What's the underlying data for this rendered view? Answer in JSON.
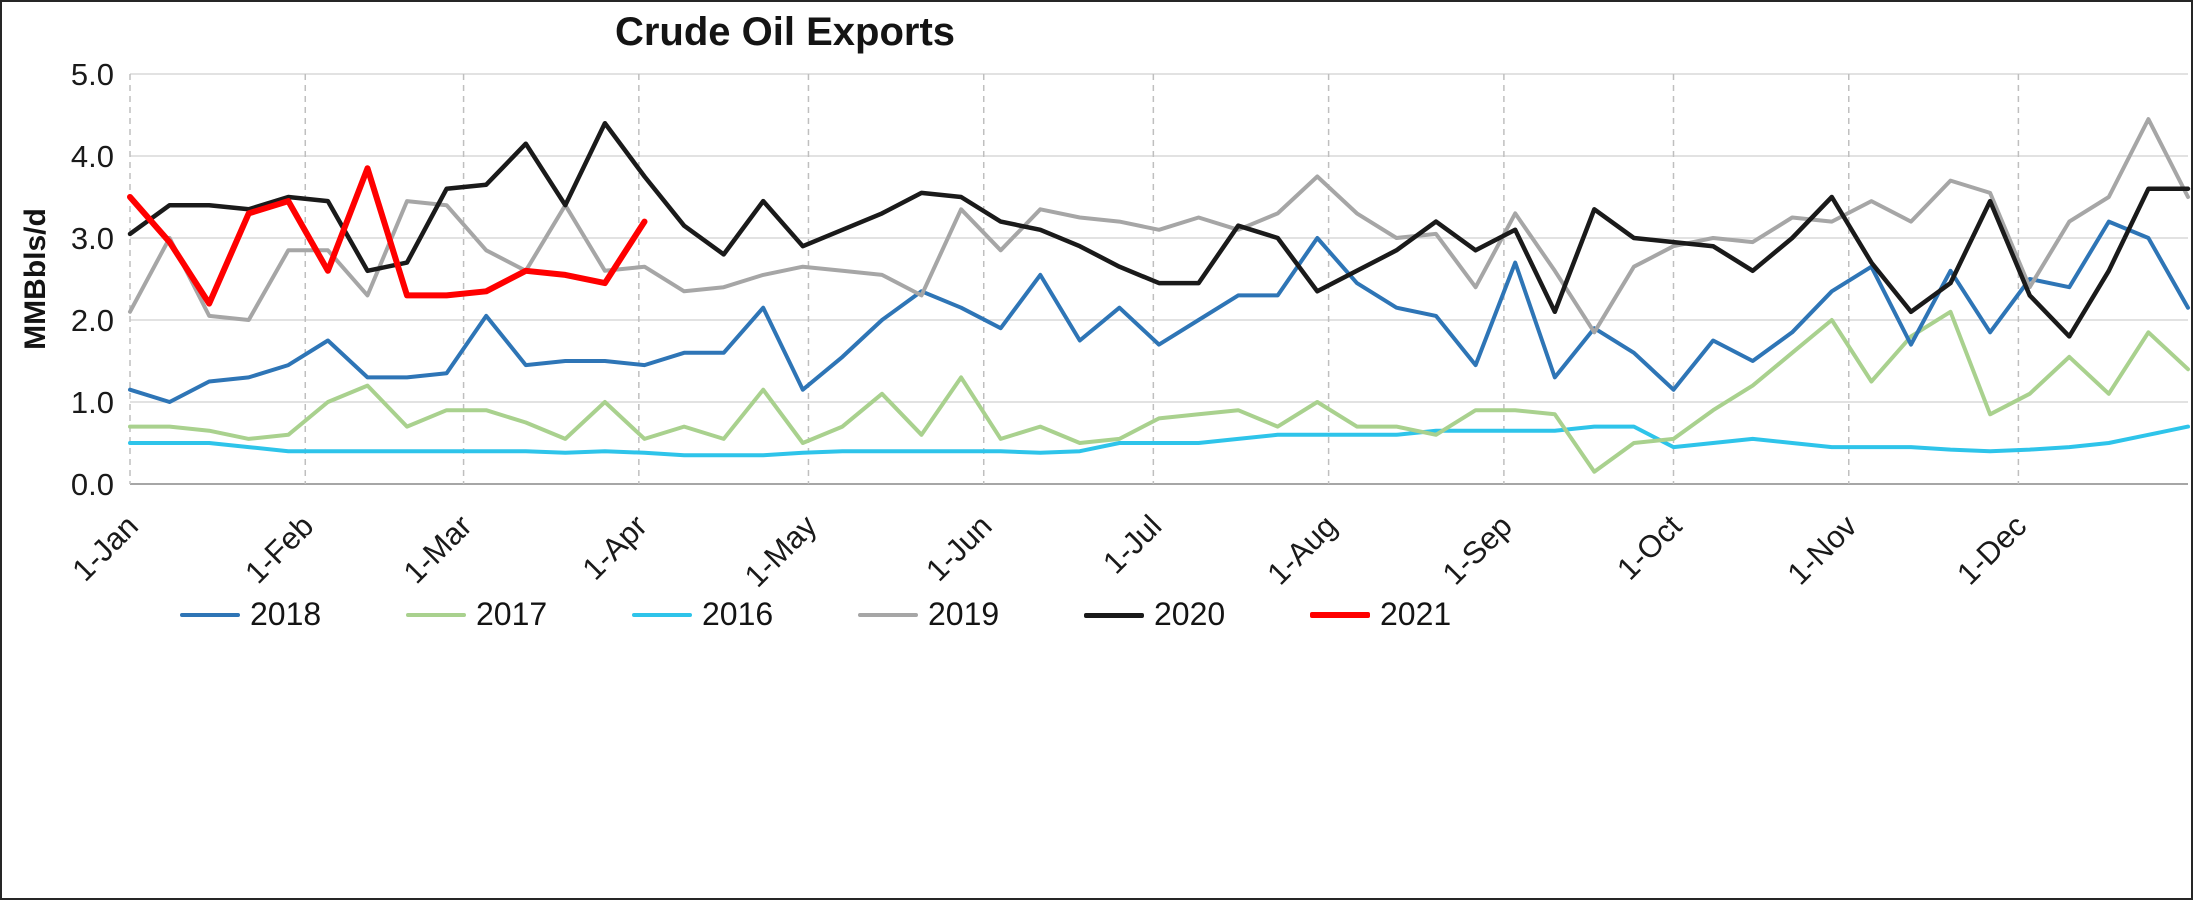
{
  "chart_data": {
    "type": "line",
    "title": "Crude Oil Exports",
    "ylabel": "MMBbls/d",
    "ylim": [
      0.0,
      5.0
    ],
    "ytick_labels": [
      "0.0",
      "1.0",
      "2.0",
      "3.0",
      "4.0",
      "5.0"
    ],
    "x_tick_labels": [
      "1-Jan",
      "1-Feb",
      "1-Mar",
      "1-Apr",
      "1-May",
      "1-Jun",
      "1-Jul",
      "1-Aug",
      "1-Sep",
      "1-Oct",
      "1-Nov",
      "1-Dec"
    ],
    "x_frequency": "weekly",
    "grid": {
      "vertical": "dashed",
      "horizontal": "light"
    },
    "legend_position": "bottom",
    "draw_order": [
      2,
      1,
      0,
      3,
      4,
      5
    ],
    "series": [
      {
        "name": "2018",
        "color": "#2E75B6",
        "width": 4,
        "values": [
          1.15,
          1.0,
          1.25,
          1.3,
          1.45,
          1.75,
          1.3,
          1.3,
          1.35,
          2.05,
          1.45,
          1.5,
          1.5,
          1.45,
          1.6,
          1.6,
          2.15,
          1.15,
          1.55,
          2.0,
          2.35,
          2.15,
          1.9,
          2.55,
          1.75,
          2.15,
          1.7,
          2.0,
          2.3,
          2.3,
          3.0,
          2.45,
          2.15,
          2.05,
          1.45,
          2.7,
          1.3,
          1.9,
          1.6,
          1.15,
          1.75,
          1.5,
          1.85,
          2.35,
          2.65,
          1.7,
          2.6,
          1.85,
          2.5,
          2.4,
          3.2,
          3.0,
          2.15
        ]
      },
      {
        "name": "2017",
        "color": "#A9D18E",
        "width": 4,
        "values": [
          0.7,
          0.7,
          0.65,
          0.55,
          0.6,
          1.0,
          1.2,
          0.7,
          0.9,
          0.9,
          0.75,
          0.55,
          1.0,
          0.55,
          0.7,
          0.55,
          1.15,
          0.5,
          0.7,
          1.1,
          0.6,
          1.3,
          0.55,
          0.7,
          0.5,
          0.55,
          0.8,
          0.85,
          0.9,
          0.7,
          1.0,
          0.7,
          0.7,
          0.6,
          0.9,
          0.9,
          0.85,
          0.15,
          0.5,
          0.55,
          0.9,
          1.2,
          1.6,
          2.0,
          1.25,
          1.8,
          2.1,
          0.85,
          1.1,
          1.55,
          1.1,
          1.85,
          1.4
        ]
      },
      {
        "name": "2016",
        "color": "#2EC4EA",
        "width": 4,
        "values": [
          0.5,
          0.5,
          0.5,
          0.45,
          0.4,
          0.4,
          0.4,
          0.4,
          0.4,
          0.4,
          0.4,
          0.38,
          0.4,
          0.38,
          0.35,
          0.35,
          0.35,
          0.38,
          0.4,
          0.4,
          0.4,
          0.4,
          0.4,
          0.38,
          0.4,
          0.5,
          0.5,
          0.5,
          0.55,
          0.6,
          0.6,
          0.6,
          0.6,
          0.65,
          0.65,
          0.65,
          0.65,
          0.7,
          0.7,
          0.45,
          0.5,
          0.55,
          0.5,
          0.45,
          0.45,
          0.45,
          0.42,
          0.4,
          0.42,
          0.45,
          0.5,
          0.6,
          0.7
        ]
      },
      {
        "name": "2019",
        "color": "#A6A6A6",
        "width": 4,
        "values": [
          2.1,
          3.0,
          2.05,
          2.0,
          2.85,
          2.85,
          2.3,
          3.45,
          3.4,
          2.85,
          2.6,
          3.4,
          2.6,
          2.65,
          2.35,
          2.4,
          2.55,
          2.65,
          2.6,
          2.55,
          2.3,
          3.35,
          2.85,
          3.35,
          3.25,
          3.2,
          3.1,
          3.25,
          3.1,
          3.3,
          3.75,
          3.3,
          3.0,
          3.05,
          2.4,
          3.3,
          2.6,
          1.85,
          2.65,
          2.9,
          3.0,
          2.95,
          3.25,
          3.2,
          3.45,
          3.2,
          3.7,
          3.55,
          2.4,
          3.2,
          3.5,
          4.45,
          3.5
        ]
      },
      {
        "name": "2020",
        "color": "#1A1A1A",
        "width": 4.5,
        "values": [
          3.05,
          3.4,
          3.4,
          3.35,
          3.5,
          3.45,
          2.6,
          2.7,
          3.6,
          3.65,
          4.15,
          3.4,
          4.4,
          3.75,
          3.15,
          2.8,
          3.45,
          2.9,
          3.1,
          3.3,
          3.55,
          3.5,
          3.2,
          3.1,
          2.9,
          2.65,
          2.45,
          2.45,
          3.15,
          3.0,
          2.35,
          2.6,
          2.85,
          3.2,
          2.85,
          3.1,
          2.1,
          3.35,
          3.0,
          2.95,
          2.9,
          2.6,
          3.0,
          3.5,
          2.7,
          2.1,
          2.45,
          3.45,
          2.3,
          1.8,
          2.6,
          3.6,
          3.6
        ]
      },
      {
        "name": "2021",
        "color": "#FF0000",
        "width": 6,
        "values": [
          3.5,
          2.95,
          2.2,
          3.3,
          3.45,
          2.6,
          3.85,
          2.3,
          2.3,
          2.35,
          2.6,
          2.55,
          2.45,
          3.2
        ]
      }
    ]
  }
}
